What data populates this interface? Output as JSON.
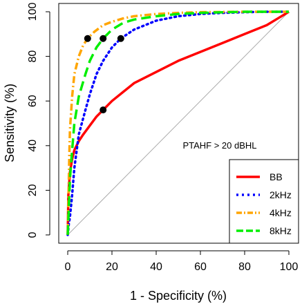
{
  "chart_data": {
    "type": "line",
    "title": "",
    "xlabel": "1 - Specificity (%)",
    "ylabel": "Sensitivity (%)",
    "xlim": [
      0,
      100
    ],
    "ylim": [
      0,
      100
    ],
    "xticks": [
      "0",
      "20",
      "40",
      "60",
      "80",
      "100"
    ],
    "yticks": [
      "0",
      "20",
      "40",
      "60",
      "80",
      "100"
    ],
    "annotation": "PTAHF > 20 dBHL",
    "legend_position": "bottom-right",
    "reference_line": {
      "x": [
        0,
        100
      ],
      "y": [
        0,
        100
      ],
      "color": "#aaaaaa"
    },
    "series": [
      {
        "name": "BB",
        "color": "#ff0000",
        "dash": "solid",
        "x": [
          0,
          0.3,
          1,
          2,
          3,
          5,
          7,
          10,
          13,
          16,
          20,
          25,
          30,
          40,
          50,
          60,
          70,
          80,
          90,
          95,
          100
        ],
        "y": [
          0,
          18,
          28,
          34,
          38,
          42,
          45,
          49,
          53,
          56,
          60,
          64,
          68,
          73,
          78,
          82,
          86,
          90,
          94,
          97,
          100
        ],
        "cutoff": {
          "x": 16,
          "y": 56
        }
      },
      {
        "name": "2kHz",
        "color": "#0000ff",
        "dash": "dotted",
        "x": [
          0,
          0.5,
          1,
          2,
          3,
          5,
          8,
          10,
          13,
          16,
          20,
          24,
          30,
          40,
          50,
          60,
          70,
          80,
          90,
          100
        ],
        "y": [
          0,
          5,
          8,
          18,
          30,
          45,
          56,
          63,
          72,
          78,
          84,
          88,
          92,
          96,
          98,
          99,
          99.5,
          99.8,
          100,
          100
        ],
        "cutoff": {
          "x": 24,
          "y": 88
        }
      },
      {
        "name": "4kHz",
        "color": "#ffa500",
        "dash": "dashdot",
        "x": [
          0,
          0.3,
          0.7,
          1,
          2,
          3,
          5,
          7,
          9,
          12,
          16,
          20,
          25,
          30,
          40,
          50,
          60,
          80,
          100
        ],
        "y": [
          0,
          15,
          35,
          47,
          62,
          72,
          80,
          85,
          88,
          91,
          94,
          95.5,
          97,
          98,
          99,
          99.5,
          99.8,
          100,
          100
        ],
        "cutoff": {
          "x": 9,
          "y": 88
        }
      },
      {
        "name": "8kHz",
        "color": "#00ee00",
        "dash": "longdash",
        "x": [
          0,
          0.5,
          1,
          2,
          3,
          5,
          8,
          10,
          13,
          16,
          20,
          25,
          30,
          40,
          50,
          60,
          80,
          100
        ],
        "y": [
          0,
          12,
          25,
          38,
          50,
          62,
          72,
          78,
          84,
          88,
          92,
          95,
          96.5,
          98,
          99,
          99.5,
          100,
          100
        ],
        "cutoff": {
          "x": 16,
          "y": 88
        }
      }
    ]
  }
}
